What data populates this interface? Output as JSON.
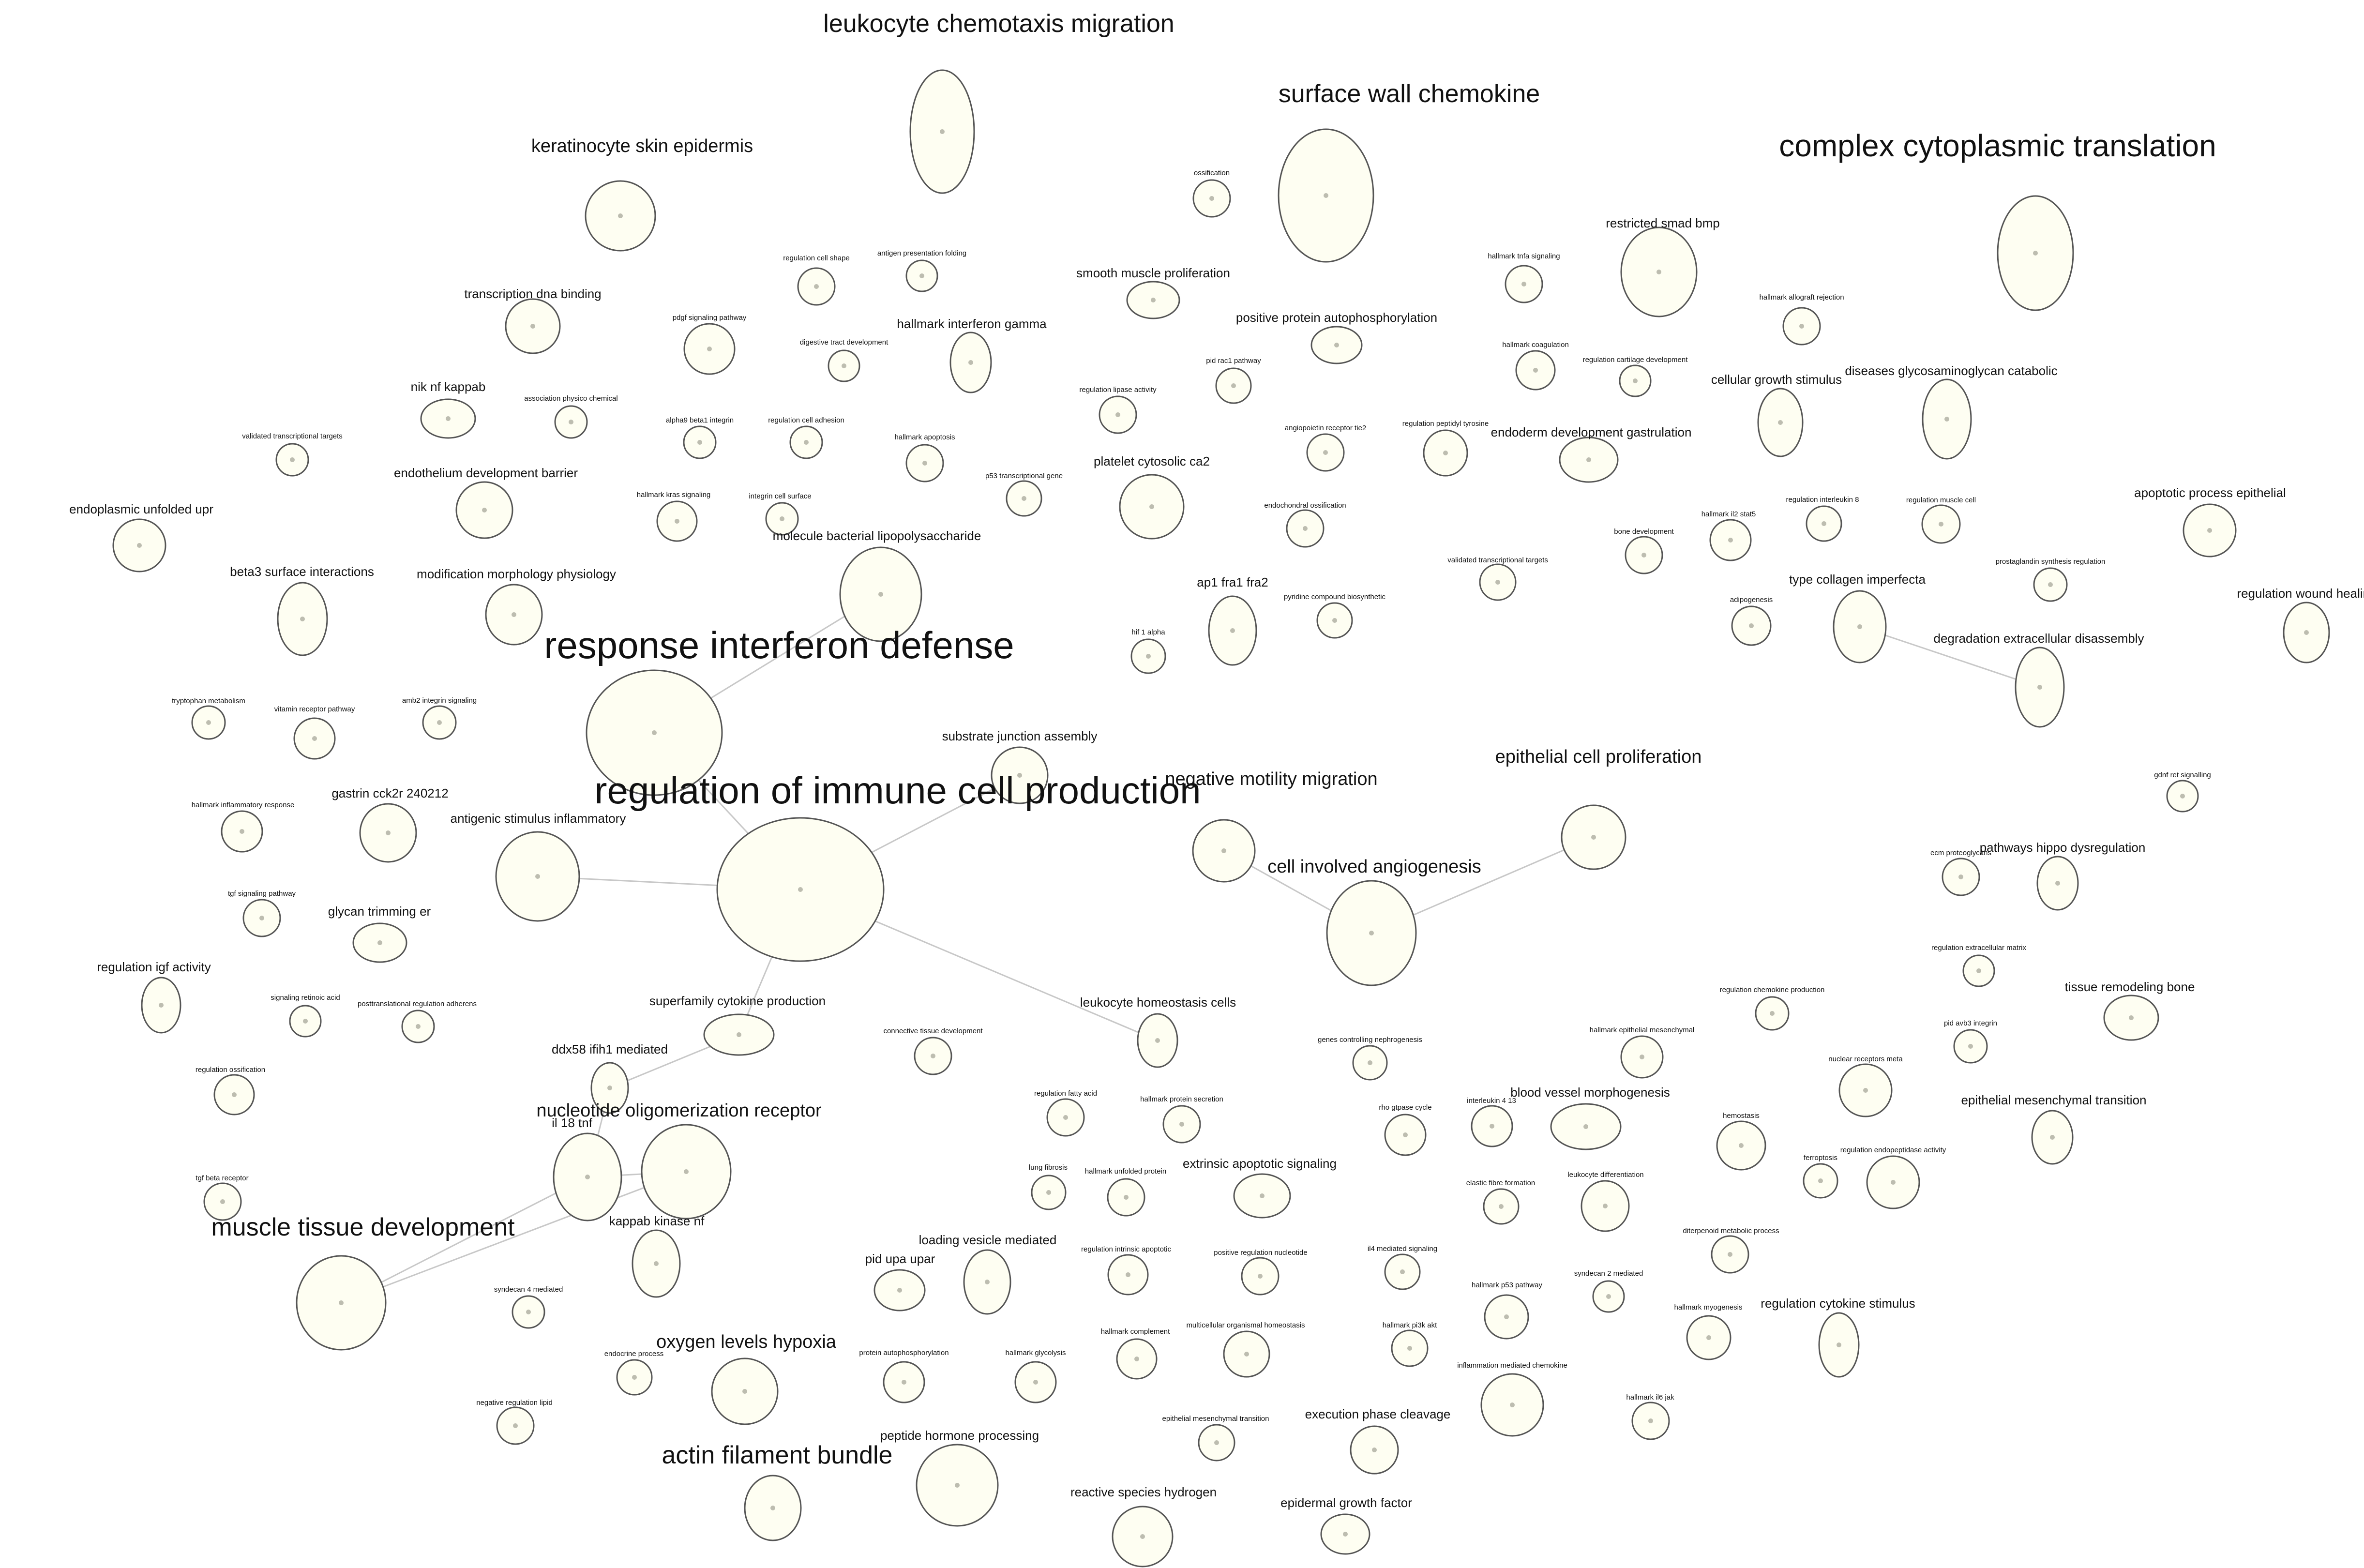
{
  "colors": {
    "node_fill": "#fefef2",
    "node_stroke": "#555555",
    "edge": "#c8c8c8",
    "center_dot": "#bdbdb0",
    "label": "#111111"
  },
  "nodes": [
    {
      "label": "leukocyte chemotaxis migration",
      "tier": "lg"
    },
    {
      "label": "surface wall chemokine",
      "tier": "lg"
    },
    {
      "label": "complex cytoplasmic translation",
      "tier": "xl"
    },
    {
      "label": "keratinocyte skin epidermis",
      "tier": "md"
    },
    {
      "label": "restricted smad bmp",
      "tier": "sm"
    },
    {
      "label": "transcription dna binding",
      "tier": "sm"
    },
    {
      "label": "ossification",
      "tier": "xs"
    },
    {
      "label": "hallmark tnfa signaling",
      "tier": "xs"
    },
    {
      "label": "hallmark allograft rejection",
      "tier": "xs"
    },
    {
      "label": "regulation cell shape",
      "tier": "xs"
    },
    {
      "label": "antigen presentation folding",
      "tier": "xs"
    },
    {
      "label": "smooth muscle proliferation",
      "tier": "sm"
    },
    {
      "label": "pdgf signaling pathway",
      "tier": "xs"
    },
    {
      "label": "hallmark interferon gamma",
      "tier": "sm"
    },
    {
      "label": "digestive tract development",
      "tier": "xs"
    },
    {
      "label": "positive protein autophosphorylation",
      "tier": "sm"
    },
    {
      "label": "hallmark coagulation",
      "tier": "xs"
    },
    {
      "label": "regulation cartilage development",
      "tier": "xs"
    },
    {
      "label": "diseases glycosaminoglycan catabolic",
      "tier": "sm"
    },
    {
      "label": "cellular growth stimulus",
      "tier": "sm"
    },
    {
      "label": "nik nf kappab",
      "tier": "sm"
    },
    {
      "label": "association physico chemical",
      "tier": "xs"
    },
    {
      "label": "pid rac1 pathway",
      "tier": "xs"
    },
    {
      "label": "regulation lipase activity",
      "tier": "xs"
    },
    {
      "label": "validated transcriptional targets",
      "tier": "xs"
    },
    {
      "label": "alpha9 beta1 integrin",
      "tier": "xs"
    },
    {
      "label": "regulation cell adhesion",
      "tier": "xs"
    },
    {
      "label": "hallmark apoptosis",
      "tier": "xs"
    },
    {
      "label": "angiopoietin receptor tie2",
      "tier": "xs"
    },
    {
      "label": "regulation peptidyl tyrosine",
      "tier": "xs"
    },
    {
      "label": "endoderm development gastrulation",
      "tier": "sm"
    },
    {
      "label": "endothelium development barrier",
      "tier": "sm"
    },
    {
      "label": "platelet cytosolic ca2",
      "tier": "sm"
    },
    {
      "label": "p53 transcriptional gene",
      "tier": "xs"
    },
    {
      "label": "hallmark kras signaling",
      "tier": "xs"
    },
    {
      "label": "integrin cell surface",
      "tier": "xs"
    },
    {
      "label": "endoplasmic unfolded upr",
      "tier": "sm"
    },
    {
      "label": "endochondral ossification",
      "tier": "xs"
    },
    {
      "label": "apoptotic process epithelial",
      "tier": "sm"
    },
    {
      "label": "regulation interleukin 8",
      "tier": "xs"
    },
    {
      "label": "regulation muscle cell",
      "tier": "xs"
    },
    {
      "label": "hallmark il2 stat5",
      "tier": "xs"
    },
    {
      "label": "bone development",
      "tier": "xs"
    },
    {
      "label": "validated transcriptional targets",
      "tier": "xs"
    },
    {
      "label": "molecule bacterial lipopolysaccharide",
      "tier": "sm"
    },
    {
      "label": "beta3 surface interactions",
      "tier": "sm"
    },
    {
      "label": "modification morphology physiology",
      "tier": "sm"
    },
    {
      "label": "prostaglandin synthesis regulation",
      "tier": "xs"
    },
    {
      "label": "ap1 fra1 fra2",
      "tier": "sm"
    },
    {
      "label": "pyridine compound biosynthetic",
      "tier": "xs"
    },
    {
      "label": "type collagen imperfecta",
      "tier": "sm"
    },
    {
      "label": "adipogenesis",
      "tier": "xs"
    },
    {
      "label": "regulation wound healing",
      "tier": "sm"
    },
    {
      "label": "degradation extracellular disassembly",
      "tier": "sm"
    },
    {
      "label": "hif 1 alpha",
      "tier": "xs"
    },
    {
      "label": "response interferon defense",
      "tier": "xxl"
    },
    {
      "label": "tryptophan metabolism",
      "tier": "xs"
    },
    {
      "label": "vitamin receptor pathway",
      "tier": "xs"
    },
    {
      "label": "amb2 integrin signaling",
      "tier": "xs"
    },
    {
      "label": "substrate junction assembly",
      "tier": "sm"
    },
    {
      "label": "epithelial cell proliferation",
      "tier": "md"
    },
    {
      "label": "gdnf ret signalling",
      "tier": "xs"
    },
    {
      "label": "regulation of immune cell production",
      "tier": "xxl"
    },
    {
      "label": "negative motility migration",
      "tier": "md"
    },
    {
      "label": "hallmark inflammatory response",
      "tier": "xs"
    },
    {
      "label": "gastrin cck2r 240212",
      "tier": "sm"
    },
    {
      "label": "antigenic stimulus inflammatory",
      "tier": "sm"
    },
    {
      "label": "cell involved angiogenesis",
      "tier": "md"
    },
    {
      "label": "ecm proteoglycans",
      "tier": "xs"
    },
    {
      "label": "pathways hippo dysregulation",
      "tier": "sm"
    },
    {
      "label": "tgf signaling pathway",
      "tier": "xs"
    },
    {
      "label": "glycan trimming er",
      "tier": "sm"
    },
    {
      "label": "regulation extracellular matrix",
      "tier": "xs"
    },
    {
      "label": "regulation igf activity",
      "tier": "sm"
    },
    {
      "label": "signaling retinoic acid",
      "tier": "xs"
    },
    {
      "label": "posttranslational regulation adherens",
      "tier": "xs"
    },
    {
      "label": "superfamily cytokine production",
      "tier": "sm"
    },
    {
      "label": "connective tissue development",
      "tier": "xs"
    },
    {
      "label": "leukocyte homeostasis cells",
      "tier": "sm"
    },
    {
      "label": "regulation chemokine production",
      "tier": "xs"
    },
    {
      "label": "tissue remodeling bone",
      "tier": "sm"
    },
    {
      "label": "pid avb3 integrin",
      "tier": "xs"
    },
    {
      "label": "genes controlling nephrogenesis",
      "tier": "xs"
    },
    {
      "label": "hallmark epithelial mesenchymal",
      "tier": "xs"
    },
    {
      "label": "nuclear receptors meta",
      "tier": "xs"
    },
    {
      "label": "regulation ossification",
      "tier": "xs"
    },
    {
      "label": "ddx58 ifih1 mediated",
      "tier": "sm"
    },
    {
      "label": "regulation fatty acid",
      "tier": "xs"
    },
    {
      "label": "hallmark protein secretion",
      "tier": "xs"
    },
    {
      "label": "epithelial mesenchymal transition",
      "tier": "sm"
    },
    {
      "label": "rho gtpase cycle",
      "tier": "xs"
    },
    {
      "label": "interleukin 4 13",
      "tier": "xs"
    },
    {
      "label": "blood vessel morphogenesis",
      "tier": "sm"
    },
    {
      "label": "hemostasis",
      "tier": "xs"
    },
    {
      "label": "regulation endopeptidase activity",
      "tier": "xs"
    },
    {
      "label": "nucleotide oligomerization receptor",
      "tier": "md"
    },
    {
      "label": "il 18 tnf",
      "tier": "sm"
    },
    {
      "label": "ferroptosis",
      "tier": "xs"
    },
    {
      "label": "lung fibrosis",
      "tier": "xs"
    },
    {
      "label": "hallmark unfolded protein",
      "tier": "xs"
    },
    {
      "label": "extrinsic apoptotic signaling",
      "tier": "sm"
    },
    {
      "label": "tgf beta receptor",
      "tier": "xs"
    },
    {
      "label": "elastic fibre formation",
      "tier": "xs"
    },
    {
      "label": "leukocyte differentiation",
      "tier": "xs"
    },
    {
      "label": "kappab kinase nf",
      "tier": "sm"
    },
    {
      "label": "muscle tissue development",
      "tier": "lg"
    },
    {
      "label": "diterpenoid metabolic process",
      "tier": "xs"
    },
    {
      "label": "loading vesicle mediated",
      "tier": "sm"
    },
    {
      "label": "regulation intrinsic apoptotic",
      "tier": "xs"
    },
    {
      "label": "positive regulation nucleotide",
      "tier": "xs"
    },
    {
      "label": "il4 mediated signaling",
      "tier": "xs"
    },
    {
      "label": "pid upa upar",
      "tier": "sm"
    },
    {
      "label": "syndecan 4 mediated",
      "tier": "xs"
    },
    {
      "label": "hallmark p53 pathway",
      "tier": "xs"
    },
    {
      "label": "syndecan 2 mediated",
      "tier": "xs"
    },
    {
      "label": "regulation cytokine stimulus",
      "tier": "sm"
    },
    {
      "label": "hallmark myogenesis",
      "tier": "xs"
    },
    {
      "label": "hallmark complement",
      "tier": "xs"
    },
    {
      "label": "multicellular organismal homeostasis",
      "tier": "xs"
    },
    {
      "label": "hallmark pi3k akt",
      "tier": "xs"
    },
    {
      "label": "oxygen levels hypoxia",
      "tier": "md"
    },
    {
      "label": "endocrine process",
      "tier": "xs"
    },
    {
      "label": "protein autophosphorylation",
      "tier": "xs"
    },
    {
      "label": "hallmark glycolysis",
      "tier": "xs"
    },
    {
      "label": "inflammation mediated chemokine",
      "tier": "xs"
    },
    {
      "label": "negative regulation lipid",
      "tier": "xs"
    },
    {
      "label": "hallmark il6 jak",
      "tier": "xs"
    },
    {
      "label": "epithelial mesenchymal transition",
      "tier": "xs"
    },
    {
      "label": "execution phase cleavage",
      "tier": "sm"
    },
    {
      "label": "peptide hormone processing",
      "tier": "sm"
    },
    {
      "label": "actin filament bundle",
      "tier": "lg"
    },
    {
      "label": "reactive species hydrogen",
      "tier": "sm"
    },
    {
      "label": "epidermal growth factor",
      "tier": "sm"
    }
  ]
}
